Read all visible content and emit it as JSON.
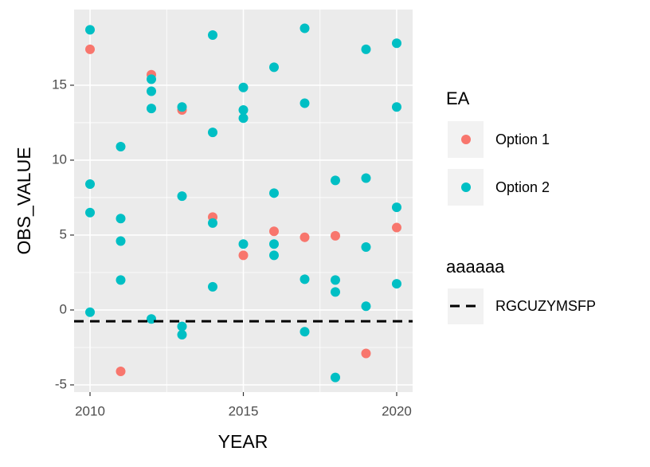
{
  "chart_data": {
    "type": "scatter",
    "x_label": "YEAR",
    "y_label": "OBS_VALUE",
    "xlim": [
      2009.48,
      2020.52
    ],
    "ylim": [
      -5.48,
      20.05
    ],
    "xticks": [
      2010,
      2015,
      2020
    ],
    "yticks": [
      -5,
      0,
      5,
      10,
      15
    ],
    "grid": true,
    "legend_title": "EA",
    "series": [
      {
        "name": "Option 1",
        "color": "#f8766d",
        "x": [
          2010,
          2011,
          2012,
          2013,
          2014,
          2015,
          2016,
          2017,
          2018,
          2019,
          2020
        ],
        "y": [
          17.4,
          -4.1,
          15.7,
          13.35,
          6.2,
          3.65,
          5.25,
          4.85,
          4.95,
          -2.9,
          5.5
        ]
      },
      {
        "name": "Option 2",
        "color": "#00bfc4",
        "x": [
          2010,
          2010,
          2010,
          2010,
          2011,
          2011,
          2011,
          2011,
          2012,
          2012,
          2012,
          2012,
          2013,
          2013,
          2013,
          2013,
          2014,
          2014,
          2014,
          2014,
          2015,
          2015,
          2015,
          2015,
          2016,
          2016,
          2016,
          2016,
          2017,
          2017,
          2017,
          2017,
          2018,
          2018,
          2018,
          2018,
          2019,
          2019,
          2019,
          2019,
          2020,
          2020,
          2020,
          2020
        ],
        "y": [
          18.7,
          8.4,
          6.5,
          -0.15,
          10.9,
          6.1,
          4.6,
          2.0,
          15.4,
          14.6,
          13.45,
          -0.6,
          13.55,
          7.6,
          -1.1,
          -1.65,
          18.35,
          11.85,
          5.8,
          1.55,
          14.85,
          13.35,
          12.8,
          4.4,
          16.2,
          7.8,
          4.4,
          3.65,
          18.8,
          13.8,
          2.05,
          -1.45,
          8.65,
          2.0,
          1.2,
          -4.5,
          17.4,
          8.8,
          4.2,
          0.25,
          17.8,
          13.55,
          6.85,
          1.75
        ]
      }
    ],
    "line_legend_title": "aaaaaa",
    "hlines": [
      {
        "name": "RGCUZYMSFP",
        "value": -0.75,
        "color": "#000000"
      }
    ]
  }
}
